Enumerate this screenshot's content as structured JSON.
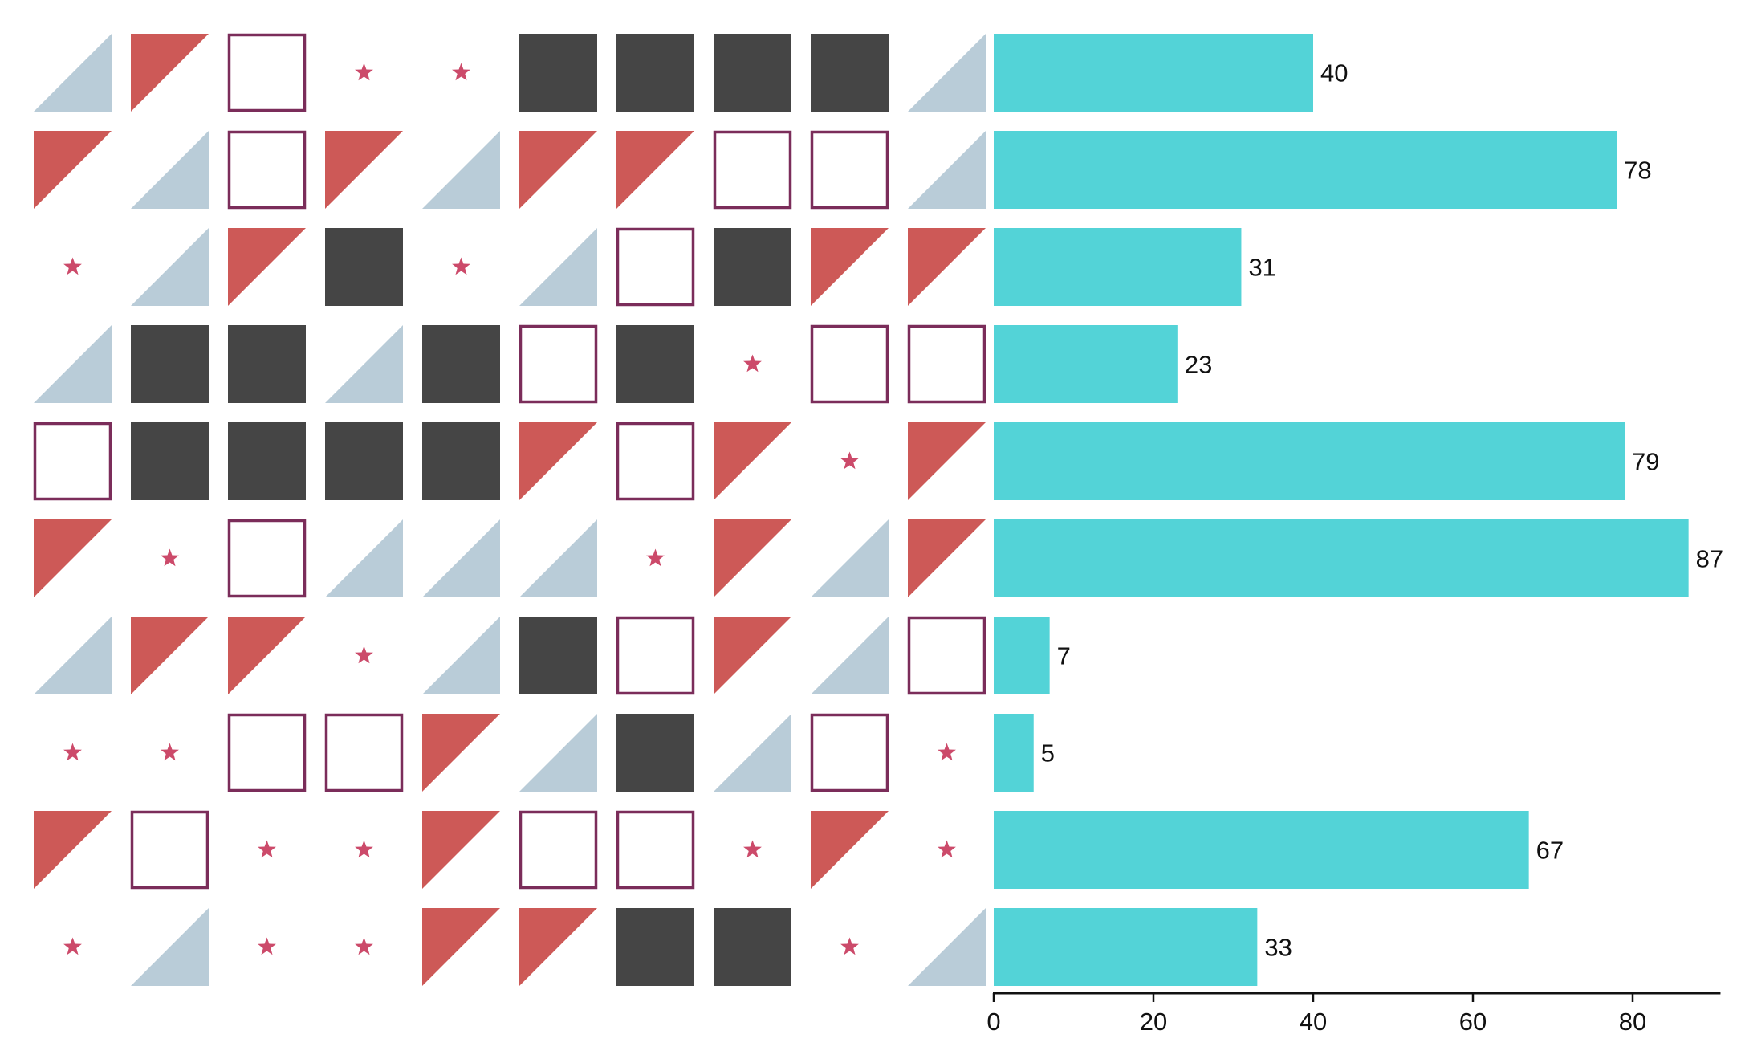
{
  "chart_data": {
    "type": "bar",
    "orientation": "horizontal",
    "values": [
      40,
      78,
      31,
      23,
      79,
      87,
      7,
      5,
      67,
      33
    ],
    "xlim": [
      0,
      91
    ],
    "xticks": [
      0,
      20,
      40,
      60,
      80
    ],
    "grid": false,
    "glyph_matrix": [
      [
        "blue-triangle",
        "red-triangle",
        "outline-square",
        "star",
        "star",
        "dark-square",
        "dark-square",
        "dark-square",
        "dark-square",
        "blue-triangle"
      ],
      [
        "red-triangle",
        "blue-triangle",
        "outline-square",
        "red-triangle",
        "blue-triangle",
        "red-triangle",
        "red-triangle",
        "outline-square",
        "outline-square",
        "blue-triangle"
      ],
      [
        "star",
        "blue-triangle",
        "red-triangle",
        "dark-square",
        "star",
        "blue-triangle",
        "outline-square",
        "dark-square",
        "red-triangle",
        "red-triangle"
      ],
      [
        "blue-triangle",
        "dark-square",
        "dark-square",
        "blue-triangle",
        "dark-square",
        "outline-square",
        "dark-square",
        "star",
        "outline-square",
        "outline-square"
      ],
      [
        "outline-square",
        "dark-square",
        "dark-square",
        "dark-square",
        "dark-square",
        "red-triangle",
        "outline-square",
        "red-triangle",
        "star",
        "red-triangle"
      ],
      [
        "red-triangle",
        "star",
        "outline-square",
        "blue-triangle",
        "blue-triangle",
        "blue-triangle",
        "star",
        "red-triangle",
        "blue-triangle",
        "red-triangle"
      ],
      [
        "blue-triangle",
        "red-triangle",
        "red-triangle",
        "star",
        "blue-triangle",
        "dark-square",
        "outline-square",
        "red-triangle",
        "blue-triangle",
        "outline-square"
      ],
      [
        "star",
        "star",
        "outline-square",
        "outline-square",
        "red-triangle",
        "blue-triangle",
        "dark-square",
        "blue-triangle",
        "outline-square",
        "star"
      ],
      [
        "red-triangle",
        "outline-square",
        "star",
        "star",
        "red-triangle",
        "outline-square",
        "outline-square",
        "star",
        "red-triangle",
        "star"
      ],
      [
        "star",
        "blue-triangle",
        "star",
        "star",
        "red-triangle",
        "red-triangle",
        "dark-square",
        "dark-square",
        "star",
        "blue-triangle"
      ]
    ]
  },
  "colors": {
    "bar": "#53d3d7",
    "dark-square": "#454545",
    "outline-square": "#7b2d5a",
    "red-triangle": "#cd5957",
    "blue-triangle": "#b9ccd8",
    "star": "#cc4a6a",
    "axis": "#111111"
  }
}
